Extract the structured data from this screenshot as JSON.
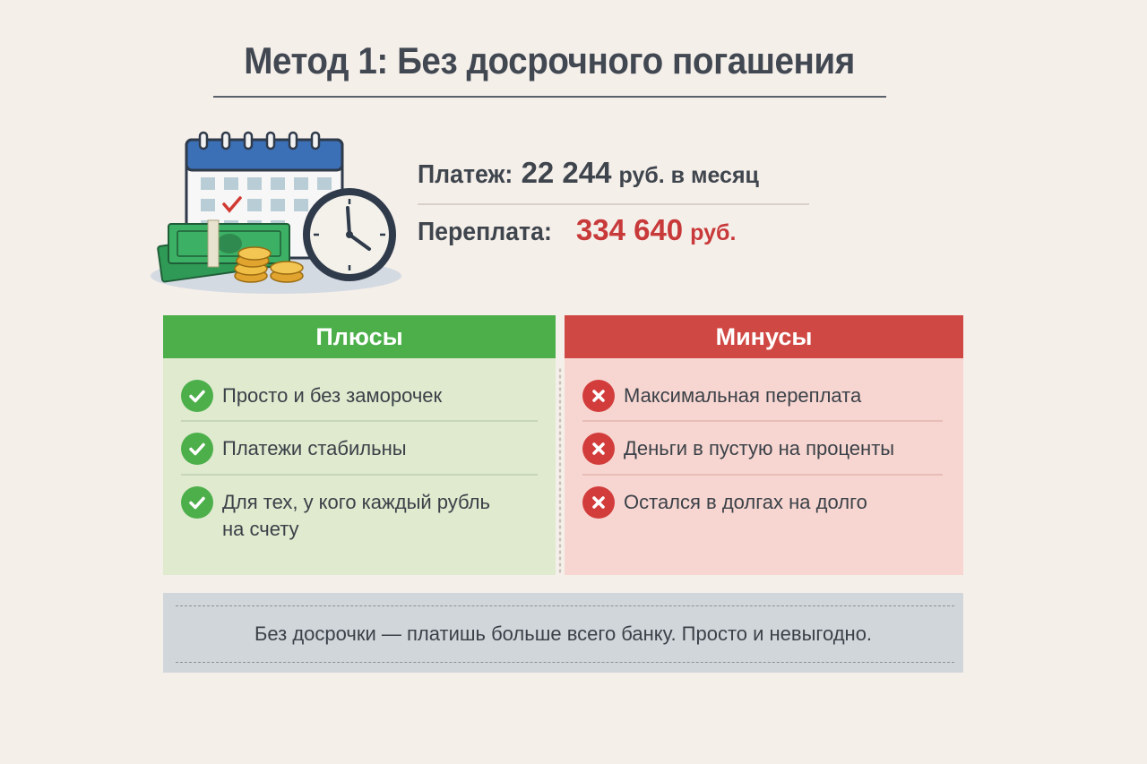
{
  "title": "Метод 1: Без досрочного погашения",
  "stats": {
    "payment": {
      "label": "Платеж:",
      "value": "22 244",
      "unit": "руб. в месяц"
    },
    "overpayment": {
      "label": "Переплата:",
      "value": "334 640",
      "unit": "руб."
    }
  },
  "pros": {
    "header": "Плюсы",
    "items": [
      {
        "text": "Просто и без заморочек"
      },
      {
        "text": "Платежи стабильны"
      },
      {
        "text": "Для тех, у кого каждый рубль на счету"
      }
    ]
  },
  "cons": {
    "header": "Минусы",
    "items": [
      {
        "text": "Максимальная переплата"
      },
      {
        "text": "Деньги в пустую на проценты"
      },
      {
        "text": "Остался в долгах на долго"
      }
    ]
  },
  "footer": {
    "text": "Без досрочки — платишь больше всего банку. Просто и невыгодно."
  },
  "colors": {
    "background": "#f5efea",
    "pros_accent": "#4caf4a",
    "cons_accent": "#d04843",
    "overpayment_value": "#c8393a"
  },
  "icons": [
    "calendar-icon",
    "money-icon",
    "coins-icon",
    "clock-icon",
    "check-icon",
    "cross-icon"
  ]
}
